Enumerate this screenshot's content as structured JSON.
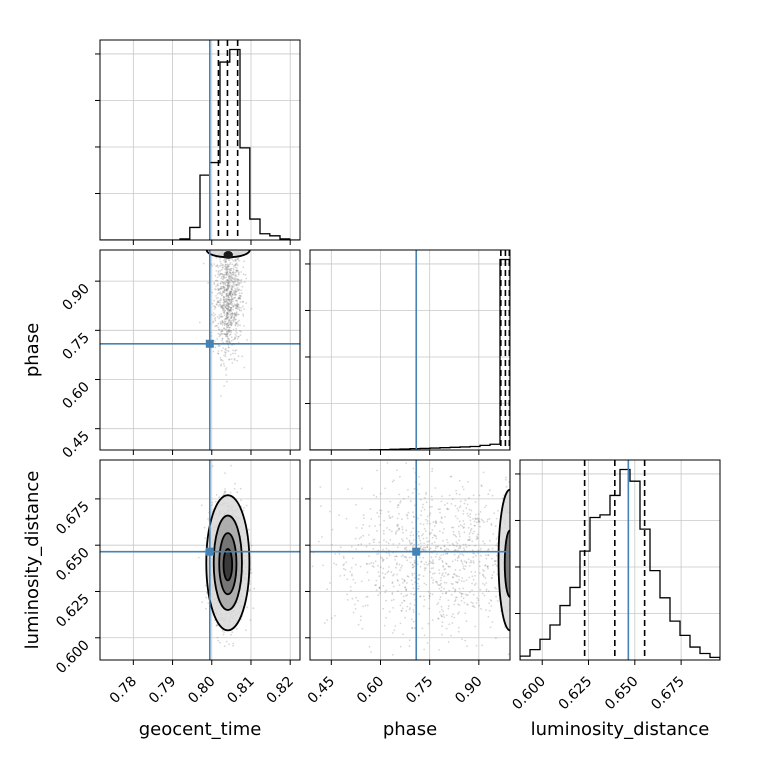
{
  "chart_data": {
    "type": "corner",
    "title": "",
    "parameters": [
      "geocent_time",
      "phase",
      "luminosity_distance"
    ],
    "truths": [
      0.7995,
      0.709,
      0.6465
    ],
    "colors": {
      "truth": "#4682b4",
      "hist": "#000000",
      "quantile": "#000000",
      "grid": "#c8c8c8",
      "density": "#000000",
      "points": "#6e6e6e"
    },
    "grid": true,
    "axes": [
      {
        "name": "geocent_time",
        "range": [
          0.7715,
          0.8225
        ],
        "ticks": [
          0.78,
          0.79,
          0.8,
          0.81,
          0.82
        ],
        "tick_labels": [
          "0.78",
          "0.79",
          "0.80",
          "0.81",
          "0.82"
        ]
      },
      {
        "name": "phase",
        "range": [
          0.385,
          0.995
        ],
        "ticks": [
          0.45,
          0.6,
          0.75,
          0.9
        ],
        "tick_labels": [
          "0.45",
          "0.60",
          "0.75",
          "0.90"
        ]
      },
      {
        "name": "luminosity_distance",
        "range": [
          0.588,
          0.696
        ],
        "ticks": [
          0.6,
          0.625,
          0.65,
          0.675
        ],
        "tick_labels": [
          "0.600",
          "0.625",
          "0.650",
          "0.675"
        ]
      }
    ],
    "histograms": [
      {
        "parameter": "geocent_time",
        "bin_edges": [
          0.7715,
          0.774,
          0.7766,
          0.7791,
          0.7817,
          0.7842,
          0.7868,
          0.7893,
          0.7919,
          0.7944,
          0.797,
          0.7995,
          0.8021,
          0.8046,
          0.8072,
          0.8097,
          0.8123,
          0.8148,
          0.8174,
          0.8199,
          0.8225
        ],
        "counts": [
          0,
          0,
          0,
          0,
          0,
          0,
          0,
          0,
          1,
          12,
          62,
          74,
          170,
          182,
          88,
          20,
          6,
          4,
          1,
          0
        ],
        "quantiles": [
          0.8017,
          0.804,
          0.8066
        ]
      },
      {
        "parameter": "phase",
        "bin_edges": [
          0.385,
          0.4155,
          0.446,
          0.4765,
          0.507,
          0.5375,
          0.568,
          0.5985,
          0.629,
          0.6595,
          0.69,
          0.7205,
          0.751,
          0.7815,
          0.812,
          0.8425,
          0.873,
          0.9035,
          0.934,
          0.9645,
          0.995
        ],
        "counts": [
          0,
          0,
          0,
          0,
          0,
          0,
          1,
          2,
          4,
          5,
          7,
          8,
          10,
          12,
          14,
          16,
          18,
          24,
          30,
          990
        ],
        "quantiles": [
          0.967,
          0.981,
          0.993
        ]
      },
      {
        "parameter": "luminosity_distance",
        "bin_edges": [
          0.588,
          0.5934,
          0.5988,
          0.6042,
          0.6096,
          0.615,
          0.6204,
          0.6258,
          0.6312,
          0.6366,
          0.642,
          0.6474,
          0.6528,
          0.6582,
          0.6636,
          0.669,
          0.6744,
          0.6798,
          0.6852,
          0.6906,
          0.696
        ],
        "counts": [
          3,
          8,
          16,
          27,
          42,
          56,
          84,
          110,
          112,
          127,
          147,
          138,
          101,
          69,
          48,
          30,
          19,
          10,
          5,
          2
        ],
        "quantiles": [
          0.6229,
          0.6392,
          0.6553
        ]
      }
    ],
    "density_2d": [
      {
        "x": "geocent_time",
        "y": "phase",
        "mean": [
          0.8042,
          0.85
        ],
        "sd": [
          0.0018,
          0.09
        ],
        "truncate_y_above": 0.99,
        "n_points": 900,
        "contours": [
          {
            "level": 1,
            "shape": "dome",
            "cx": 0.8042,
            "cy": 0.995,
            "rx": 0.0055,
            "ry": 0.022
          }
        ],
        "dark_core": {
          "cx": 0.8042,
          "cy": 0.98,
          "rx": 0.0012,
          "ry": 0.012
        }
      },
      {
        "x": "geocent_time",
        "y": "luminosity_distance",
        "mean": [
          0.8042,
          0.641
        ],
        "sd": [
          0.002,
          0.0145
        ],
        "n_points": 2200,
        "contours": [
          {
            "level": 1,
            "cx": 0.8041,
            "cy": 0.6405,
            "rx": 0.0055,
            "ry": 0.0365
          },
          {
            "level": 2,
            "cx": 0.8041,
            "cy": 0.6405,
            "rx": 0.0036,
            "ry": 0.0255
          },
          {
            "level": 3,
            "cx": 0.8041,
            "cy": 0.64,
            "rx": 0.0022,
            "ry": 0.0165
          },
          {
            "level": 4,
            "cx": 0.8041,
            "cy": 0.6395,
            "rx": 0.0011,
            "ry": 0.0085
          }
        ]
      },
      {
        "x": "phase",
        "y": "luminosity_distance",
        "mean": [
          0.78,
          0.642
        ],
        "sd": [
          0.16,
          0.02
        ],
        "truncate_x_above": 0.995,
        "n_points": 1100,
        "contours": [
          {
            "level": 1,
            "shape": "half-left",
            "cx": 0.995,
            "cy": 0.642,
            "rx": 0.035,
            "ry": 0.038
          },
          {
            "level": 3,
            "shape": "half-left",
            "cx": 0.995,
            "cy": 0.64,
            "rx": 0.016,
            "ry": 0.018
          }
        ]
      }
    ]
  }
}
